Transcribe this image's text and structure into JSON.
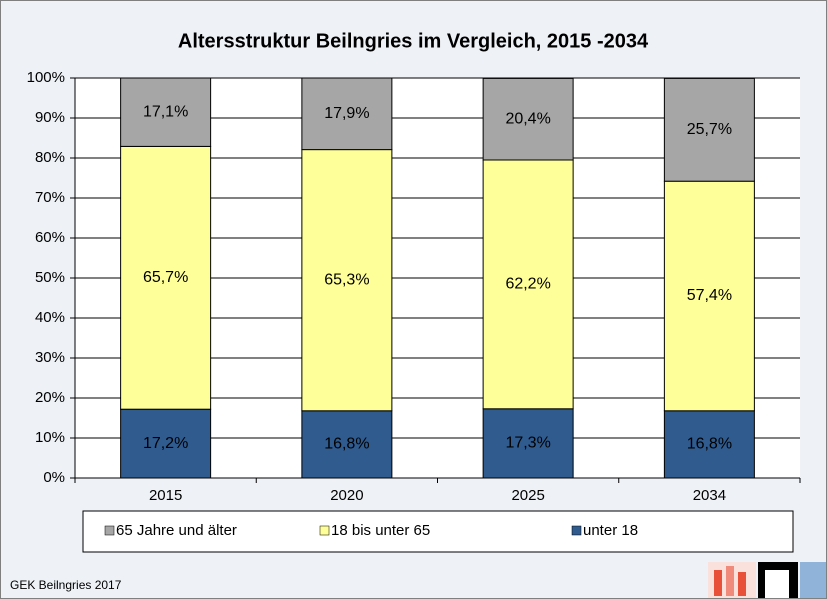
{
  "chart_data": {
    "type": "stacked_bar",
    "title": "Altersstruktur Beilngries im Vergleich, 2015 -2034",
    "categories": [
      "2015",
      "2020",
      "2025",
      "2034"
    ],
    "series": [
      {
        "name": "unter 18",
        "color": "#2f5b8f",
        "values": [
          17.2,
          16.8,
          17.3,
          16.8
        ],
        "value_labels": [
          "17,2%",
          "16,8%",
          "17,3%",
          "16,8%"
        ]
      },
      {
        "name": "18 bis unter 65",
        "color": "#ffff99",
        "values": [
          65.7,
          65.3,
          62.2,
          57.4
        ],
        "value_labels": [
          "65,7%",
          "65,3%",
          "62,2%",
          "57,4%"
        ]
      },
      {
        "name": "65 Jahre und älter",
        "color": "#a6a6a6",
        "values": [
          17.1,
          17.9,
          20.4,
          25.7
        ],
        "value_labels": [
          "17,1%",
          "17,9%",
          "20,4%",
          "25,7%"
        ]
      }
    ],
    "ylim": [
      0,
      100
    ],
    "yticks": [
      {
        "value": 0,
        "label": "0%"
      },
      {
        "value": 10,
        "label": "10%"
      },
      {
        "value": 20,
        "label": "20%"
      },
      {
        "value": 30,
        "label": "30%"
      },
      {
        "value": 40,
        "label": "40%"
      },
      {
        "value": 50,
        "label": "50%"
      },
      {
        "value": 60,
        "label": "60%"
      },
      {
        "value": 70,
        "label": "70%"
      },
      {
        "value": 80,
        "label": "80%"
      },
      {
        "value": 90,
        "label": "90%"
      },
      {
        "value": 100,
        "label": "100%"
      }
    ],
    "grid": true,
    "legend": "bottom",
    "footer": "GEK Beilngries 2017"
  }
}
